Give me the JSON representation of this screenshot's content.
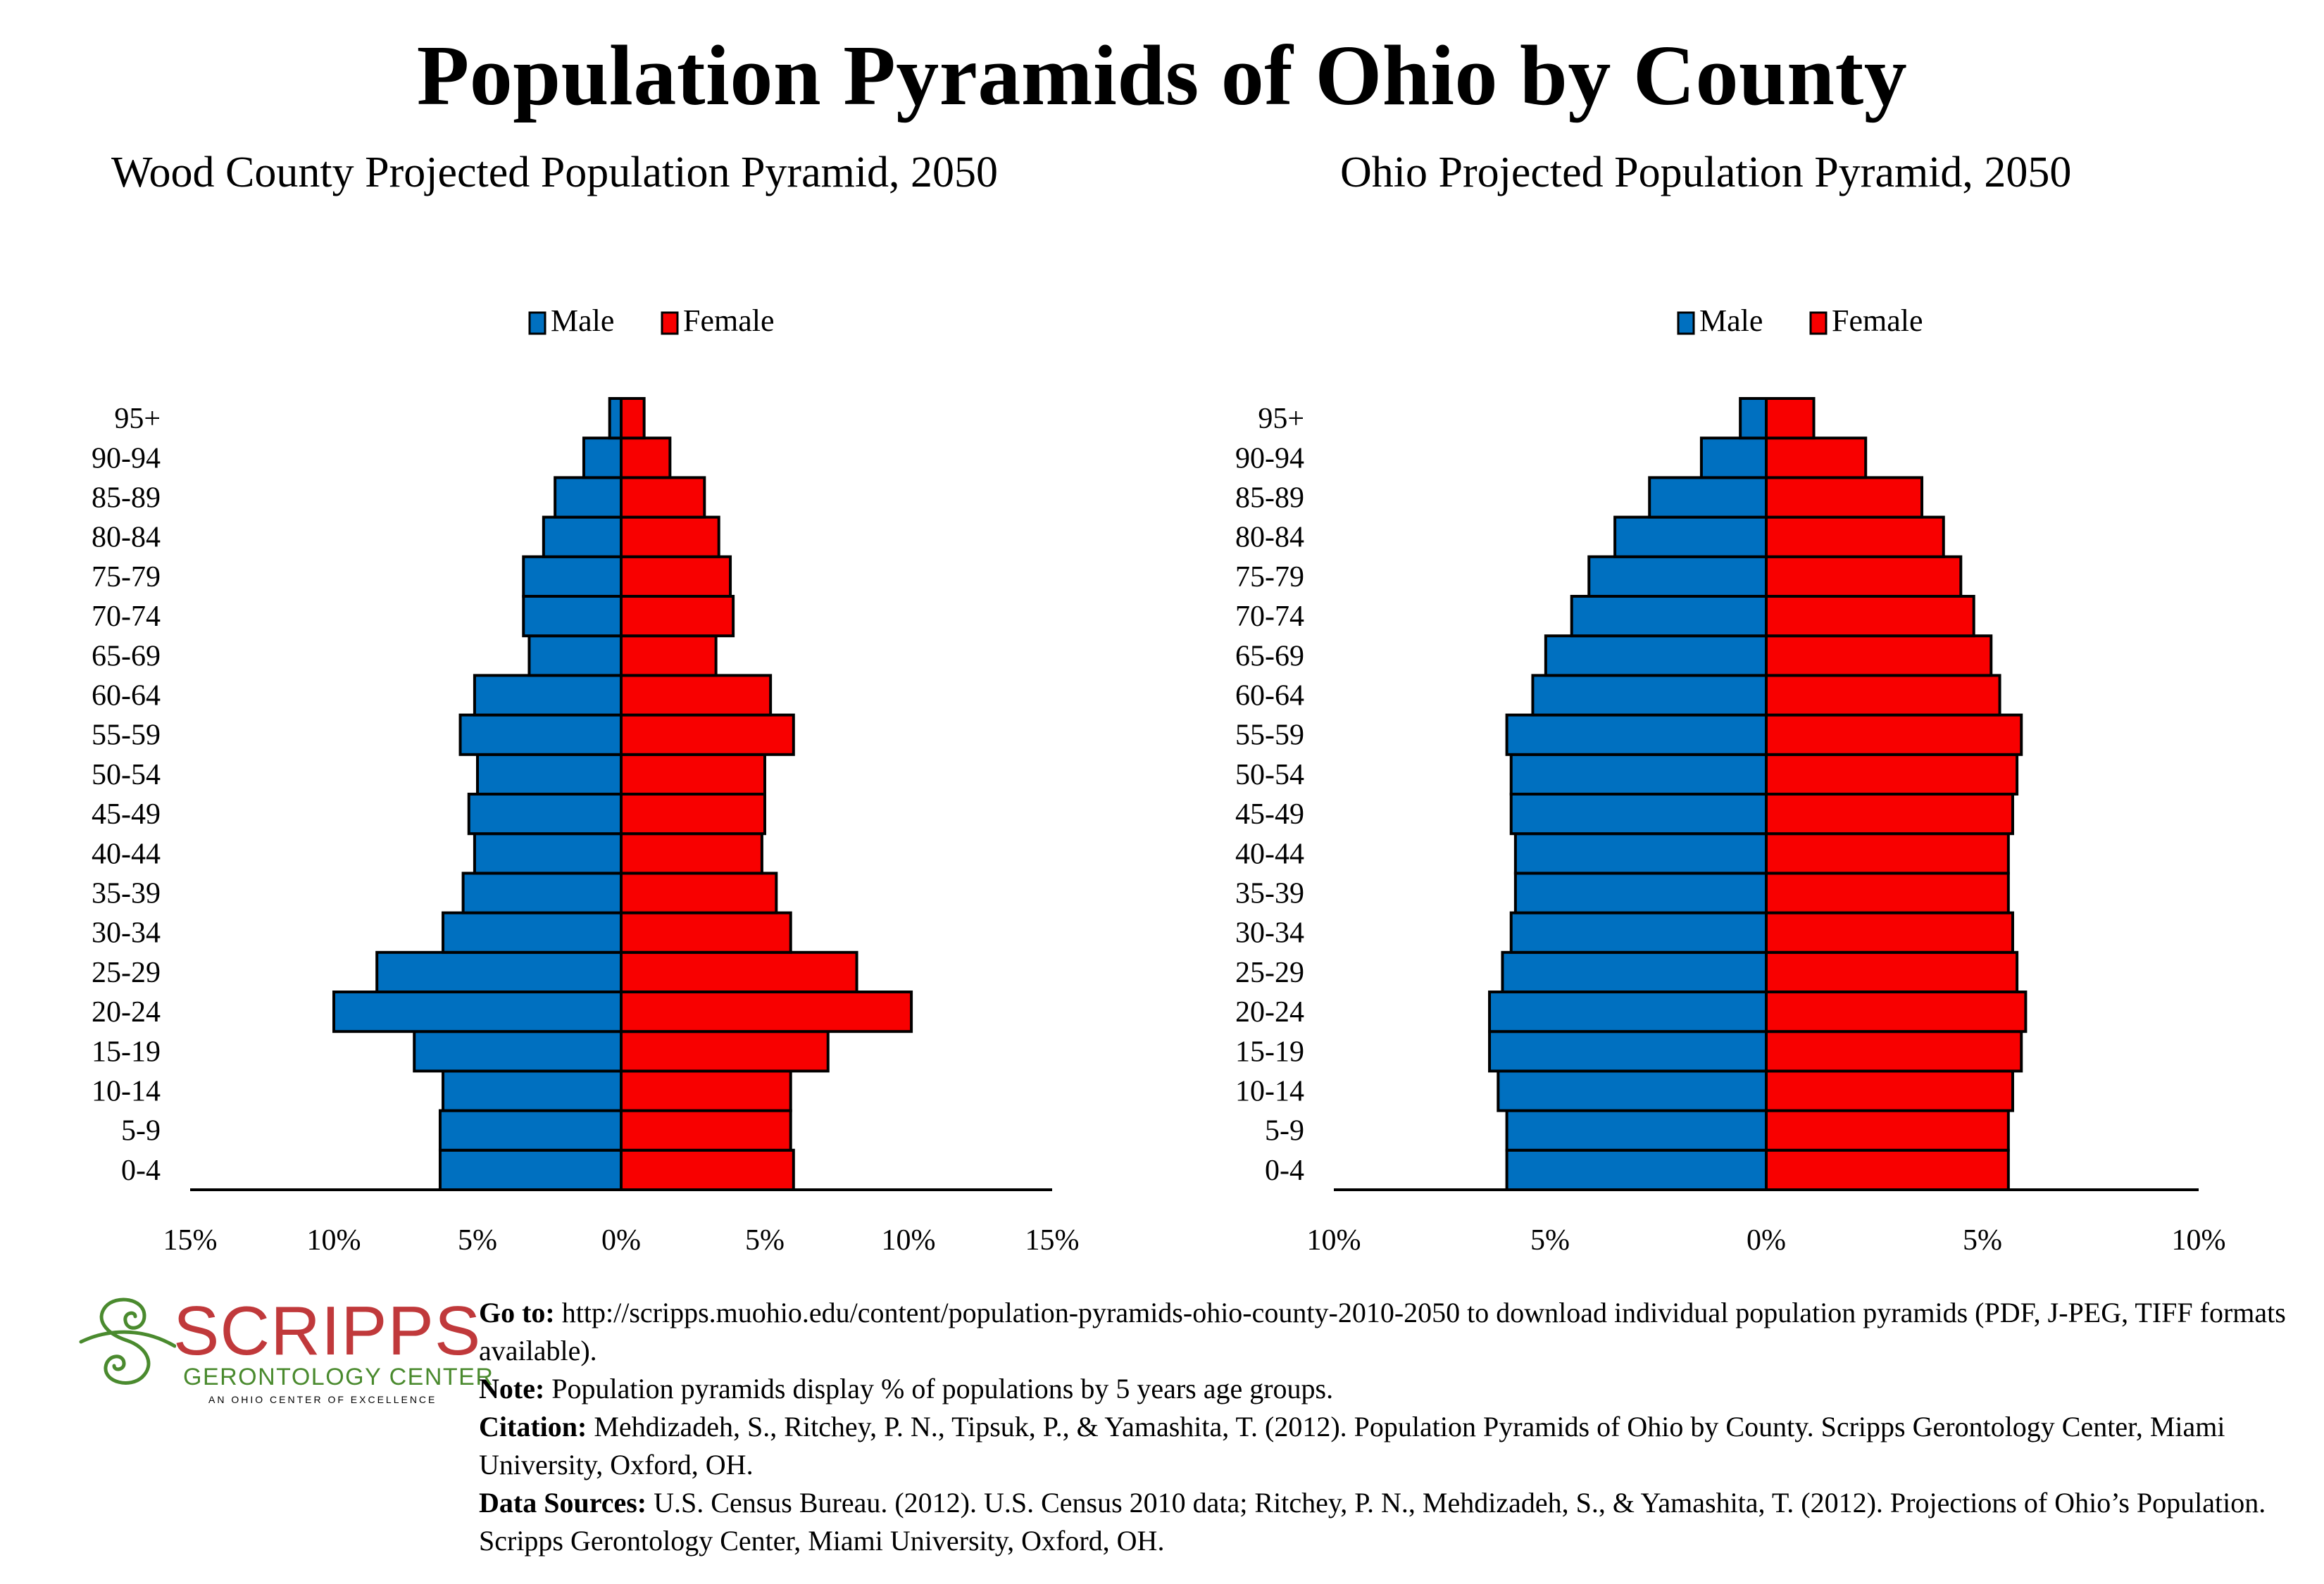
{
  "page": {
    "title": "Population Pyramids of Ohio by County"
  },
  "colors": {
    "male": "#0070C0",
    "female": "#F80000",
    "outline": "#000000"
  },
  "chart_data": [
    {
      "type": "bar",
      "subtype": "population-pyramid",
      "title": "Wood County Projected Population Pyramid, 2050",
      "legend": [
        "Male",
        "Female"
      ],
      "legend_position": "top-center",
      "xlabel": "",
      "ylabel": "",
      "xlim": [
        -15,
        15
      ],
      "xticks": [
        -15,
        -10,
        -5,
        0,
        5,
        10,
        15
      ],
      "xtick_labels": [
        "15%",
        "10%",
        "5%",
        "0%",
        "5%",
        "10%",
        "15%"
      ],
      "grid": false,
      "categories": [
        "0-4",
        "5-9",
        "10-14",
        "15-19",
        "20-24",
        "25-29",
        "30-34",
        "35-39",
        "40-44",
        "45-49",
        "50-54",
        "55-59",
        "60-64",
        "65-69",
        "70-74",
        "75-79",
        "80-84",
        "85-89",
        "90-94",
        "95+"
      ],
      "series": [
        {
          "name": "Male",
          "values": [
            6.3,
            6.3,
            6.2,
            7.2,
            10.0,
            8.5,
            6.2,
            5.5,
            5.1,
            5.3,
            5.0,
            5.6,
            5.1,
            3.2,
            3.4,
            3.4,
            2.7,
            2.3,
            1.3,
            0.4
          ]
        },
        {
          "name": "Female",
          "values": [
            6.0,
            5.9,
            5.9,
            7.2,
            10.1,
            8.2,
            5.9,
            5.4,
            4.9,
            5.0,
            5.0,
            6.0,
            5.2,
            3.3,
            3.9,
            3.8,
            3.4,
            2.9,
            1.7,
            0.8
          ]
        }
      ]
    },
    {
      "type": "bar",
      "subtype": "population-pyramid",
      "title": "Ohio Projected Population Pyramid, 2050",
      "legend": [
        "Male",
        "Female"
      ],
      "legend_position": "top-center",
      "xlabel": "",
      "ylabel": "",
      "xlim": [
        -10,
        10
      ],
      "xticks": [
        -10,
        -5,
        0,
        5,
        10
      ],
      "xtick_labels": [
        "10%",
        "5%",
        "0%",
        "5%",
        "10%"
      ],
      "grid": false,
      "categories": [
        "0-4",
        "5-9",
        "10-14",
        "15-19",
        "20-24",
        "25-29",
        "30-34",
        "35-39",
        "40-44",
        "45-49",
        "50-54",
        "55-59",
        "60-64",
        "65-69",
        "70-74",
        "75-79",
        "80-84",
        "85-89",
        "90-94",
        "95+"
      ],
      "series": [
        {
          "name": "Male",
          "values": [
            6.0,
            6.0,
            6.2,
            6.4,
            6.4,
            6.1,
            5.9,
            5.8,
            5.8,
            5.9,
            5.9,
            6.0,
            5.4,
            5.1,
            4.5,
            4.1,
            3.5,
            2.7,
            1.5,
            0.6
          ]
        },
        {
          "name": "Female",
          "values": [
            5.6,
            5.6,
            5.7,
            5.9,
            6.0,
            5.8,
            5.7,
            5.6,
            5.6,
            5.7,
            5.8,
            5.9,
            5.4,
            5.2,
            4.8,
            4.5,
            4.1,
            3.6,
            2.3,
            1.1
          ]
        }
      ]
    }
  ],
  "logo": {
    "name": "SCRIPPS",
    "subtitle": "GERONTOLOGY CENTER",
    "tagline": "AN OHIO CENTER OF EXCELLENCE"
  },
  "footer": {
    "goto_label": "Go to:",
    "goto_text": " http://scripps.muohio.edu/content/population-pyramids-ohio-county-2010-2050 to download individual population pyramids (PDF, J-PEG, TIFF formats available).",
    "note_label": "Note:",
    "note_text": " Population pyramids display % of populations by 5 years age groups.",
    "citation_label": "Citation:",
    "citation_text": " Mehdizadeh, S., Ritchey, P. N., Tipsuk, P., & Yamashita, T. (2012). Population Pyramids of Ohio by County. Scripps Gerontology Center, Miami University, Oxford, OH.",
    "sources_label": "Data Sources:",
    "sources_text": " U.S. Census Bureau. (2012). U.S. Census 2010 data; Ritchey, P. N., Mehdizadeh, S., & Yamashita, T. (2012). Projections of Ohio’s Population. Scripps Gerontology Center, Miami University, Oxford, OH."
  }
}
